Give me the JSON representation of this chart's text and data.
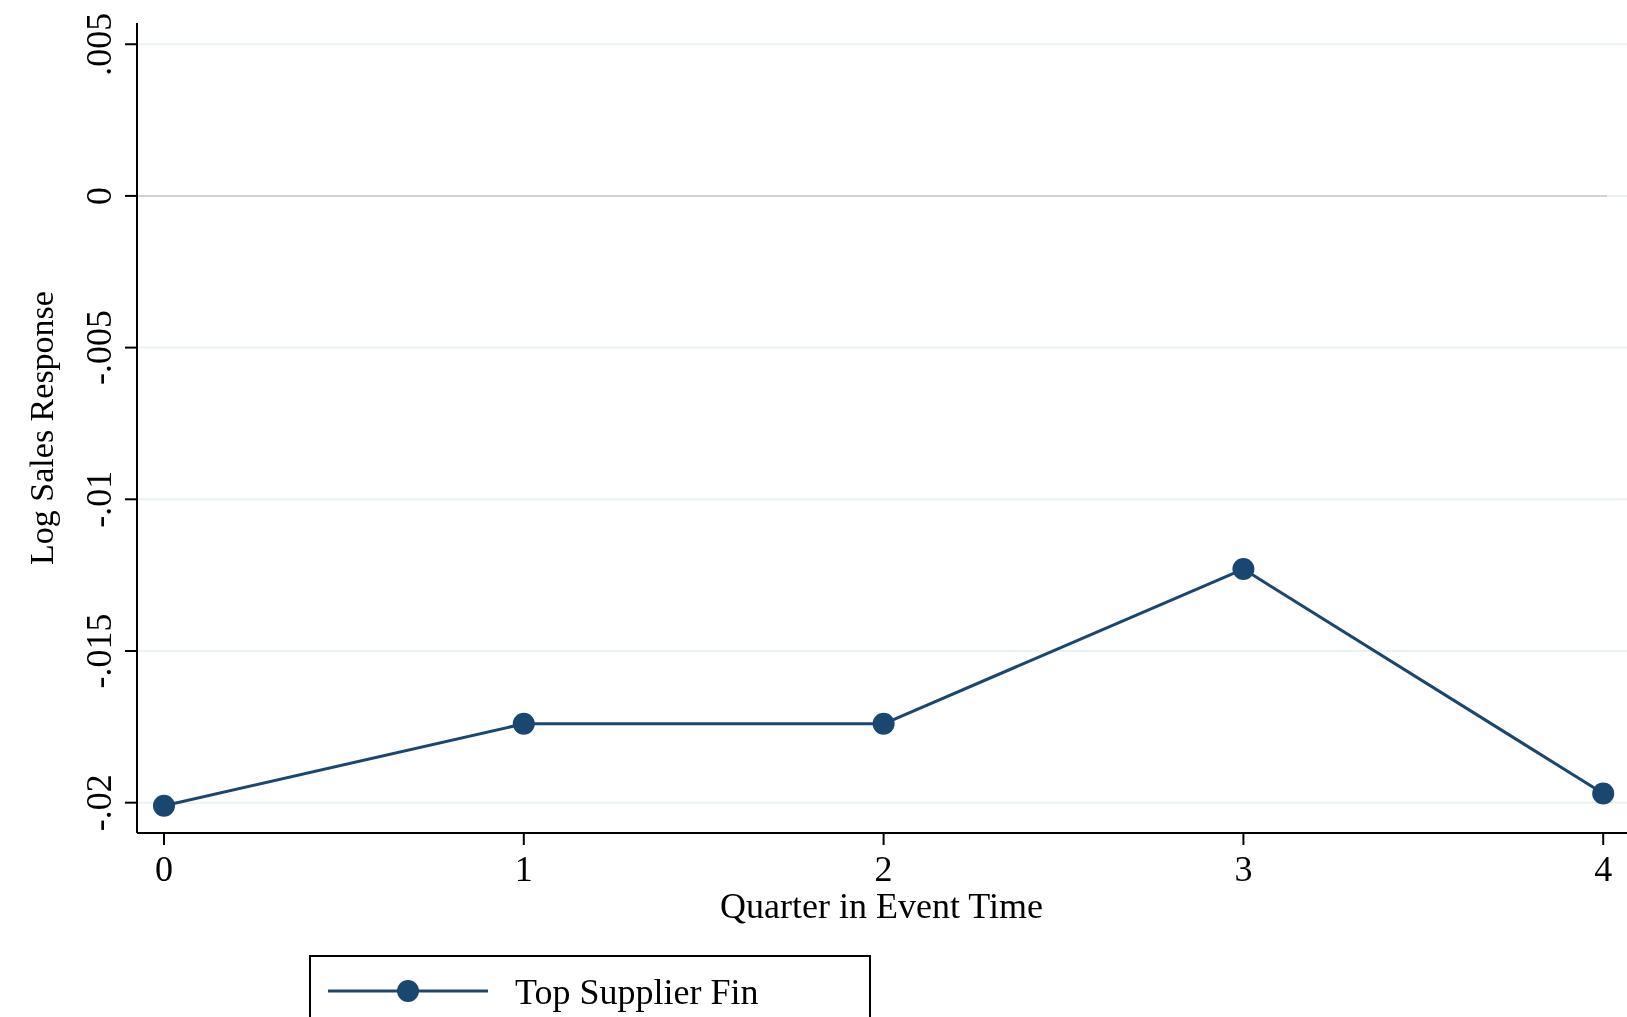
{
  "chart_data": {
    "type": "line",
    "xlabel": "Quarter in Event Time",
    "ylabel": "Log Sales Response",
    "x": [
      0,
      1,
      2,
      3,
      4
    ],
    "series": [
      {
        "name": "Top Supplier Fin",
        "color": "#1a476f",
        "values": [
          -0.0201,
          -0.0174,
          -0.0174,
          -0.0123,
          -0.0197
        ]
      }
    ],
    "xlim": [
      -0.075,
      4.08
    ],
    "xticks": [
      0,
      1,
      2,
      3,
      4
    ],
    "ylim": [
      -0.021,
      0.0057
    ],
    "yticks": [
      {
        "value": 0.005,
        "label": ".005"
      },
      {
        "value": 0,
        "label": "0"
      },
      {
        "value": -0.005,
        "label": "-.005"
      },
      {
        "value": -0.01,
        "label": "-.01"
      },
      {
        "value": -0.015,
        "label": "-.015"
      },
      {
        "value": -0.02,
        "label": "-.02"
      }
    ],
    "ref_lines": [
      {
        "axis": "y",
        "value": 0,
        "color": "#c8c8c8"
      }
    ],
    "grid": "y",
    "legend": "bottom",
    "marker": "circle",
    "line_style": "solid"
  }
}
